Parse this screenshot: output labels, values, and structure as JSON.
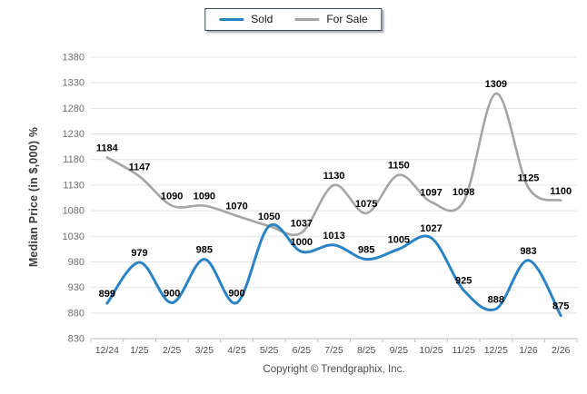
{
  "footer": {
    "copyright": "Copyright © Trendgraphix, Inc."
  },
  "colors": {
    "background": "#ffffff",
    "grid": "#e4e4e4",
    "axis": "#bdbdbd",
    "tick_label": "#6f6f6f",
    "x_label": "#4f4f4f",
    "data_label": "#000000",
    "axis_title": "#3c3c3c",
    "legend_border": "#3e4a5e",
    "sold": "#2b83c4",
    "for_sale": "#a5a5a5"
  },
  "chart_data": {
    "type": "line",
    "title": "",
    "xlabel": "",
    "ylabel": "Median Price (in $,000) %",
    "ylim": [
      830,
      1380
    ],
    "ytick_step": 50,
    "grid": true,
    "smooth": true,
    "point_labels": true,
    "legend_position": "top-center",
    "categories": [
      "12/24",
      "1/25",
      "2/25",
      "3/25",
      "4/25",
      "5/25",
      "6/25",
      "7/25",
      "8/25",
      "9/25",
      "10/25",
      "11/25",
      "12/25",
      "1/26",
      "2/26"
    ],
    "series": [
      {
        "name": "Sold",
        "color": "#2b83c4",
        "values": [
          899,
          979,
          900,
          985,
          900,
          1050,
          1000,
          1013,
          985,
          1005,
          1027,
          925,
          888,
          983,
          875
        ],
        "labels": [
          "899",
          "979",
          "900",
          "985",
          "900",
          "1050",
          "1000",
          "1013",
          "985",
          "1005",
          "1027",
          "925",
          "888",
          "983",
          "875"
        ]
      },
      {
        "name": "For Sale",
        "color": "#a5a5a5",
        "values": [
          1184,
          1147,
          1090,
          1090,
          1070,
          1050,
          1037,
          1130,
          1075,
          1150,
          1097,
          1098,
          1309,
          1125,
          1100
        ],
        "labels": [
          "1184",
          "1147",
          "1090",
          "1090",
          "1070",
          "",
          "1037",
          "1130",
          "1075",
          "1150",
          "1097",
          "1098",
          "1309",
          "1125",
          "1100"
        ]
      }
    ]
  }
}
